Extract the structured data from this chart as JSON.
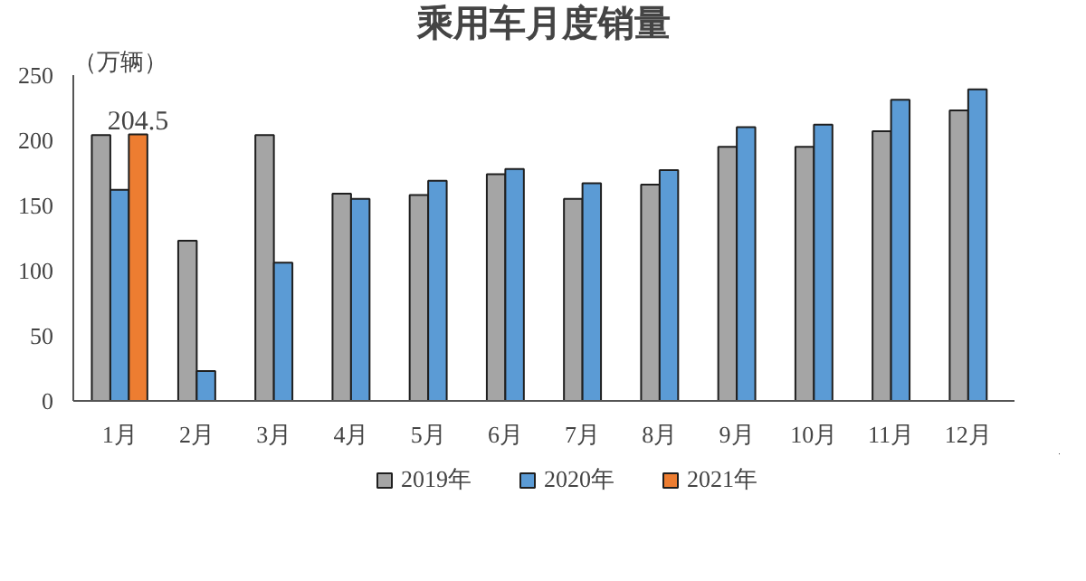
{
  "chart_data": {
    "type": "bar",
    "title": "乘用车月度销量",
    "ylabel": "（万辆）",
    "categories": [
      "1月",
      "2月",
      "3月",
      "4月",
      "5月",
      "6月",
      "7月",
      "8月",
      "9月",
      "10月",
      "11月",
      "12月"
    ],
    "series": [
      {
        "name": "2019年",
        "color": "#a5a5a5",
        "values": [
          204,
          123,
          204,
          159,
          158,
          174,
          155,
          166,
          195,
          195,
          207,
          223
        ]
      },
      {
        "name": "2020年",
        "color": "#5b9bd5",
        "values": [
          162,
          23,
          106,
          155,
          169,
          178,
          167,
          177,
          210,
          212,
          231,
          239
        ]
      },
      {
        "name": "2021年",
        "color": "#ed7d31",
        "values": [
          204.5,
          null,
          null,
          null,
          null,
          null,
          null,
          null,
          null,
          null,
          null,
          null
        ],
        "value_labels": [
          "204.5",
          null,
          null,
          null,
          null,
          null,
          null,
          null,
          null,
          null,
          null,
          null
        ]
      }
    ],
    "ylim": [
      0,
      250
    ],
    "yticks": [
      0,
      50,
      100,
      150,
      200,
      250
    ],
    "grid": false,
    "legend": "bottom"
  }
}
